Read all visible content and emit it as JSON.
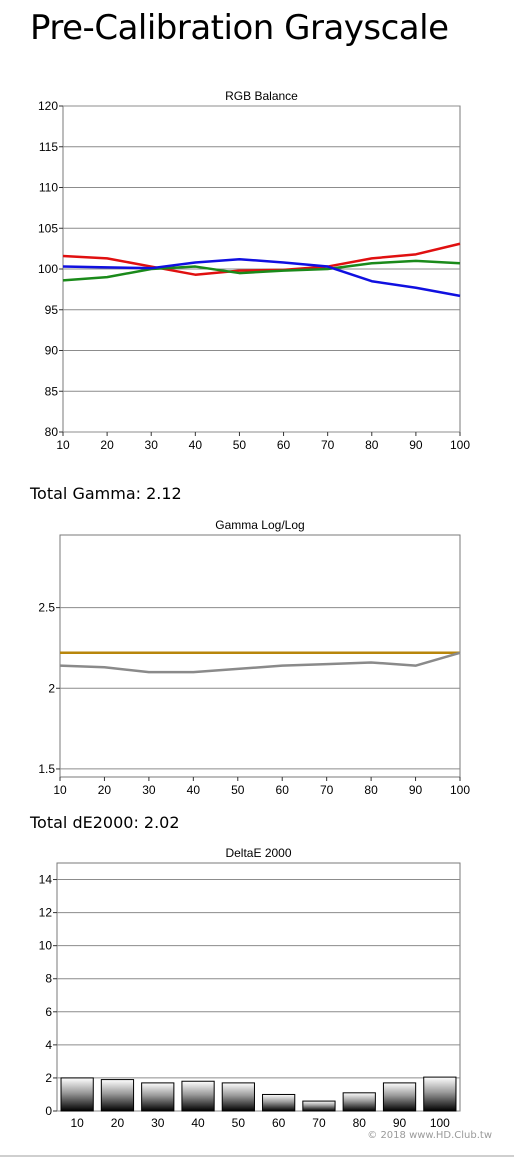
{
  "page": {
    "title": "Pre-Calibration Grayscale",
    "gamma_summary": "Total Gamma: 2.12",
    "de_summary": "Total dE2000: 2.02",
    "watermark": "© 2018 www.HD.Club.tw"
  },
  "chart_data": [
    {
      "type": "line",
      "title": "RGB Balance",
      "x": [
        10,
        20,
        30,
        40,
        50,
        60,
        70,
        80,
        90,
        100
      ],
      "ylim": [
        80,
        120
      ],
      "yticks": [
        80,
        85,
        90,
        95,
        100,
        105,
        110,
        115,
        120
      ],
      "grid": true,
      "series": [
        {
          "color": "#e01010",
          "values": [
            101.6,
            101.3,
            100.3,
            99.3,
            99.8,
            99.9,
            100.3,
            101.3,
            101.8,
            103.1
          ]
        },
        {
          "color": "#1a8a1a",
          "values": [
            98.6,
            99.0,
            100.0,
            100.3,
            99.5,
            99.8,
            100.0,
            100.7,
            101.0,
            100.7
          ]
        },
        {
          "color": "#1010e0",
          "values": [
            100.3,
            100.2,
            100.1,
            100.8,
            101.2,
            100.8,
            100.3,
            98.5,
            97.7,
            96.7
          ]
        }
      ]
    },
    {
      "type": "line",
      "title": "Gamma Log/Log",
      "x": [
        10,
        20,
        30,
        40,
        50,
        60,
        70,
        80,
        90,
        100
      ],
      "ylim": [
        1.45,
        2.95
      ],
      "yticks": [
        1.5,
        2,
        2.5
      ],
      "grid": true,
      "series": [
        {
          "color": "#b8860b",
          "values": [
            2.22,
            2.22,
            2.22,
            2.22,
            2.22,
            2.22,
            2.22,
            2.22,
            2.22,
            2.22
          ]
        },
        {
          "color": "#8a8a8a",
          "values": [
            2.14,
            2.13,
            2.1,
            2.1,
            2.12,
            2.14,
            2.15,
            2.16,
            2.14,
            2.22
          ]
        }
      ]
    },
    {
      "type": "bar",
      "title": "DeltaE 2000",
      "categories": [
        "10",
        "20",
        "30",
        "40",
        "50",
        "60",
        "70",
        "80",
        "90",
        "100"
      ],
      "values": [
        2.0,
        1.9,
        1.7,
        1.8,
        1.7,
        1.0,
        0.6,
        1.1,
        1.7,
        2.05
      ],
      "ylim": [
        0,
        15
      ],
      "yticks": [
        0,
        2,
        4,
        6,
        8,
        10,
        12,
        14
      ],
      "grid": true
    }
  ]
}
